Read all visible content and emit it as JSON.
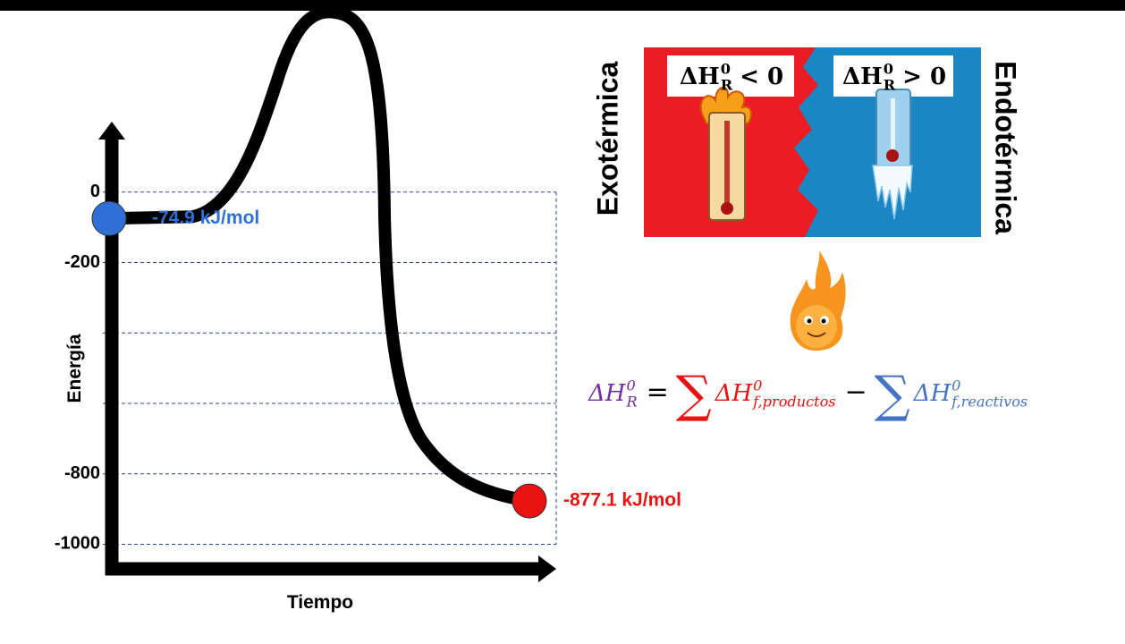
{
  "chart_data": {
    "type": "energy-diagram",
    "x_label": "Tiempo",
    "y_label": "Energía",
    "ylim": [
      -1070,
      190
    ],
    "yticks": [
      0,
      -200,
      {
        "value": -400,
        "label": null
      },
      {
        "value": -600,
        "label": null
      },
      -800,
      -1000
    ],
    "grid": true,
    "values": [
      -74.9,
      -877.1
    ],
    "value_labels": [
      "-74.9 kJ/mol",
      "-877.1 kJ/mol"
    ],
    "colors": [
      "#2e6fd8",
      "#e81212"
    ]
  },
  "illustration": {
    "left_label": "Exotérmica",
    "right_label": "Endotérmica",
    "exo": {
      "symbol": "ΔH",
      "sup": "0",
      "sub": "R",
      "relation": "< 0"
    },
    "endo": {
      "symbol": "ΔH",
      "sup": "0",
      "sub": "R",
      "relation": "> 0"
    }
  },
  "equation": {
    "lhs": {
      "symbol": "ΔH",
      "sup": "0",
      "sub": "R"
    },
    "equals": "=",
    "sum": "∑",
    "term1": {
      "symbol": "ΔH",
      "sup": "0",
      "sub": "f,productos"
    },
    "minus": "−",
    "term2": {
      "symbol": "ΔH",
      "sup": "0",
      "sub": "f,reactivos"
    }
  }
}
